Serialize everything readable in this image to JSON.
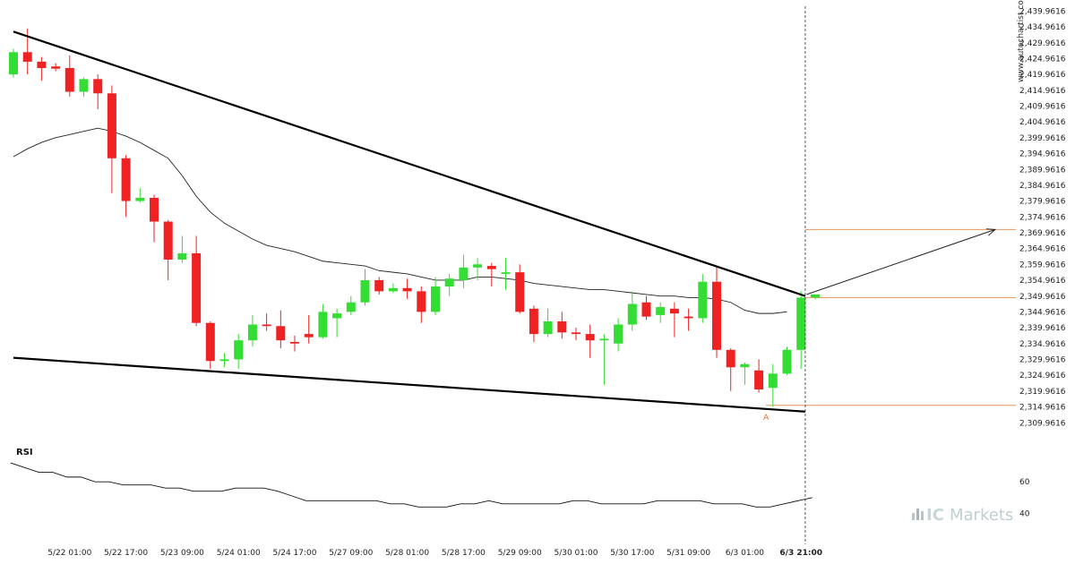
{
  "chart_data": {
    "type": "candlestick",
    "watermark": "www.autochartist.com",
    "brand": {
      "prefix": "IC",
      "suffix": "Markets"
    },
    "y_ticks": [
      "2,439.9616",
      "2,434.9616",
      "2,429.9616",
      "2,424.9616",
      "2,419.9616",
      "2,414.9616",
      "2,409.9616",
      "2,404.9616",
      "2,399.9616",
      "2,394.9616",
      "2,389.9616",
      "2,384.9616",
      "2,379.9616",
      "2,374.9616",
      "2,369.9616",
      "2,364.9616",
      "2,359.9616",
      "2,354.9616",
      "2,349.9616",
      "2,344.9616",
      "2,339.9616",
      "2,334.9616",
      "2,329.9616",
      "2,324.9616",
      "2,319.9616",
      "2,314.9616",
      "2,309.9616"
    ],
    "ylim": [
      2307.5,
      2441.5
    ],
    "x_labels": [
      "5/22 01:00",
      "5/22 17:00",
      "5/23 09:00",
      "5/24 01:00",
      "5/24 17:00",
      "5/27 09:00",
      "5/28 01:00",
      "5/28 17:00",
      "5/29 09:00",
      "5/30 01:00",
      "5/30 17:00",
      "5/31 09:00",
      "6/3 01:00",
      "6/3 21:00"
    ],
    "x_label_positions": [
      4,
      8,
      12,
      16,
      20,
      24,
      28,
      32,
      36,
      40,
      44,
      48,
      52,
      56
    ],
    "candles": [
      {
        "o": 2420.0,
        "h": 2428.0,
        "l": 2419.0,
        "c": 2427.0
      },
      {
        "o": 2427.0,
        "h": 2434.5,
        "l": 2420.0,
        "c": 2424.0
      },
      {
        "o": 2424.0,
        "h": 2425.5,
        "l": 2418.0,
        "c": 2422.0
      },
      {
        "o": 2422.5,
        "h": 2423.5,
        "l": 2421.0,
        "c": 2421.8
      },
      {
        "o": 2422.0,
        "h": 2426.0,
        "l": 2413.0,
        "c": 2414.5
      },
      {
        "o": 2414.5,
        "h": 2419.0,
        "l": 2413.0,
        "c": 2418.5
      },
      {
        "o": 2418.5,
        "h": 2420.0,
        "l": 2409.0,
        "c": 2414.0
      },
      {
        "o": 2414.0,
        "h": 2416.5,
        "l": 2382.5,
        "c": 2393.5
      },
      {
        "o": 2393.5,
        "h": 2394.5,
        "l": 2375.0,
        "c": 2380.0
      },
      {
        "o": 2380.0,
        "h": 2384.0,
        "l": 2379.5,
        "c": 2381.0
      },
      {
        "o": 2381.0,
        "h": 2382.0,
        "l": 2367.0,
        "c": 2373.5
      },
      {
        "o": 2373.5,
        "h": 2374.0,
        "l": 2355.0,
        "c": 2361.5
      },
      {
        "o": 2361.5,
        "h": 2369.0,
        "l": 2360.5,
        "c": 2363.5
      },
      {
        "o": 2363.5,
        "h": 2369.0,
        "l": 2340.5,
        "c": 2341.5
      },
      {
        "o": 2341.5,
        "h": 2342.0,
        "l": 2327.0,
        "c": 2329.5
      },
      {
        "o": 2329.5,
        "h": 2332.0,
        "l": 2327.5,
        "c": 2330.0
      },
      {
        "o": 2330.0,
        "h": 2338.0,
        "l": 2327.0,
        "c": 2336.0
      },
      {
        "o": 2336.0,
        "h": 2344.0,
        "l": 2334.0,
        "c": 2341.0
      },
      {
        "o": 2341.0,
        "h": 2344.5,
        "l": 2339.0,
        "c": 2340.5
      },
      {
        "o": 2340.5,
        "h": 2345.5,
        "l": 2333.5,
        "c": 2336.0
      },
      {
        "o": 2335.5,
        "h": 2337.5,
        "l": 2332.5,
        "c": 2335.0
      },
      {
        "o": 2338.0,
        "h": 2344.0,
        "l": 2335.0,
        "c": 2337.0
      },
      {
        "o": 2337.0,
        "h": 2347.5,
        "l": 2336.5,
        "c": 2345.0
      },
      {
        "o": 2343.0,
        "h": 2346.0,
        "l": 2337.0,
        "c": 2344.5
      },
      {
        "o": 2345.0,
        "h": 2350.0,
        "l": 2344.0,
        "c": 2348.0
      },
      {
        "o": 2348.0,
        "h": 2358.5,
        "l": 2347.0,
        "c": 2355.0
      },
      {
        "o": 2355.0,
        "h": 2356.0,
        "l": 2350.5,
        "c": 2351.5
      },
      {
        "o": 2351.5,
        "h": 2354.0,
        "l": 2351.0,
        "c": 2352.5
      },
      {
        "o": 2352.5,
        "h": 2355.5,
        "l": 2349.0,
        "c": 2351.5
      },
      {
        "o": 2351.5,
        "h": 2353.0,
        "l": 2341.5,
        "c": 2345.0
      },
      {
        "o": 2345.0,
        "h": 2356.0,
        "l": 2344.0,
        "c": 2353.0
      },
      {
        "o": 2353.0,
        "h": 2357.0,
        "l": 2350.0,
        "c": 2355.5
      },
      {
        "o": 2355.0,
        "h": 2363.0,
        "l": 2352.5,
        "c": 2359.0
      },
      {
        "o": 2359.0,
        "h": 2362.0,
        "l": 2355.0,
        "c": 2360.0
      },
      {
        "o": 2359.5,
        "h": 2360.5,
        "l": 2353.0,
        "c": 2358.5
      },
      {
        "o": 2357.0,
        "h": 2362.0,
        "l": 2352.0,
        "c": 2357.5
      },
      {
        "o": 2357.5,
        "h": 2360.0,
        "l": 2344.5,
        "c": 2345.0
      },
      {
        "o": 2346.0,
        "h": 2347.0,
        "l": 2335.5,
        "c": 2338.0
      },
      {
        "o": 2338.0,
        "h": 2346.0,
        "l": 2337.0,
        "c": 2342.0
      },
      {
        "o": 2342.0,
        "h": 2345.0,
        "l": 2336.5,
        "c": 2338.5
      },
      {
        "o": 2338.5,
        "h": 2340.0,
        "l": 2336.0,
        "c": 2338.0
      },
      {
        "o": 2338.0,
        "h": 2341.0,
        "l": 2330.5,
        "c": 2336.0
      },
      {
        "o": 2336.0,
        "h": 2338.0,
        "l": 2322.0,
        "c": 2336.5
      },
      {
        "o": 2335.0,
        "h": 2343.0,
        "l": 2332.5,
        "c": 2341.0
      },
      {
        "o": 2341.0,
        "h": 2351.5,
        "l": 2339.0,
        "c": 2347.5
      },
      {
        "o": 2348.0,
        "h": 2350.0,
        "l": 2342.5,
        "c": 2343.5
      },
      {
        "o": 2344.0,
        "h": 2348.0,
        "l": 2341.5,
        "c": 2346.5
      },
      {
        "o": 2346.0,
        "h": 2348.0,
        "l": 2337.0,
        "c": 2344.5
      },
      {
        "o": 2343.5,
        "h": 2346.0,
        "l": 2339.0,
        "c": 2343.0
      },
      {
        "o": 2343.0,
        "h": 2357.0,
        "l": 2341.5,
        "c": 2354.5
      },
      {
        "o": 2354.5,
        "h": 2359.5,
        "l": 2330.5,
        "c": 2333.0
      },
      {
        "o": 2333.0,
        "h": 2333.5,
        "l": 2320.0,
        "c": 2327.5
      },
      {
        "o": 2327.5,
        "h": 2329.0,
        "l": 2322.0,
        "c": 2328.5
      },
      {
        "o": 2326.5,
        "h": 2330.0,
        "l": 2319.5,
        "c": 2320.5
      },
      {
        "o": 2321.0,
        "h": 2328.5,
        "l": 2315.0,
        "c": 2325.5
      },
      {
        "o": 2325.5,
        "h": 2334.0,
        "l": 2325.0,
        "c": 2333.0
      },
      {
        "o": 2333.0,
        "h": 2351.5,
        "l": 2327.0,
        "c": 2349.5
      },
      {
        "o": 2349.5,
        "h": 2350.5,
        "l": 2349.0,
        "c": 2350.5
      }
    ],
    "ma": [
      2394.0,
      2396.5,
      2398.5,
      2400.0,
      2401.0,
      2402.0,
      2403.0,
      2402.0,
      2400.5,
      2398.5,
      2396.0,
      2393.5,
      2388.0,
      2381.5,
      2376.5,
      2373.0,
      2370.5,
      2368.0,
      2366.0,
      2365.0,
      2364.0,
      2362.5,
      2361.0,
      2360.5,
      2360.0,
      2359.5,
      2358.0,
      2357.5,
      2357.0,
      2356.0,
      2355.0,
      2355.0,
      2355.0,
      2356.0,
      2356.0,
      2355.5,
      2355.0,
      2354.0,
      2353.5,
      2353.0,
      2352.5,
      2352.0,
      2352.0,
      2351.5,
      2351.0,
      2350.5,
      2350.0,
      2350.0,
      2349.5,
      2349.5,
      2349.0,
      2348.0,
      2345.5,
      2344.5,
      2344.5,
      2345.0
    ],
    "upper_line": {
      "from": [
        0,
        2433.5
      ],
      "to": [
        56.3,
        2350.0
      ]
    },
    "lower_line": {
      "from": [
        0,
        2330.5
      ],
      "to": [
        56.3,
        2313.5
      ]
    },
    "levels": [
      {
        "start": 56.3,
        "value": 2371.0
      },
      {
        "start": 56.3,
        "value": 2349.5
      },
      {
        "start": 53.5,
        "value": 2315.5
      }
    ],
    "arrow": {
      "from": [
        56.4,
        2350.5
      ],
      "to": [
        69.8,
        2371.0
      ]
    },
    "marker": {
      "index": 53.5,
      "value": 2313.2,
      "label": "A"
    },
    "current_index": 56.3,
    "rsi": {
      "title": "RSI",
      "ticks": [
        "60",
        "40"
      ],
      "tick_values": [
        60,
        40
      ],
      "ylim": [
        26,
        76
      ],
      "values": [
        72,
        69,
        66,
        66,
        63,
        63,
        60,
        60,
        58,
        58,
        58,
        56,
        56,
        54,
        54,
        54,
        56,
        56,
        56,
        54,
        51,
        48,
        48,
        48,
        48,
        48,
        48,
        46,
        46,
        44,
        44,
        44,
        46,
        46,
        48,
        46,
        46,
        46,
        46,
        46,
        48,
        48,
        46,
        46,
        46,
        46,
        48,
        48,
        48,
        48,
        46,
        46,
        46,
        44,
        44,
        46,
        48,
        50
      ]
    }
  }
}
